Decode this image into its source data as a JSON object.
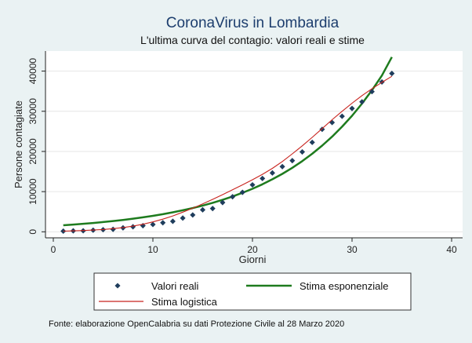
{
  "chart_data": {
    "type": "scatter",
    "title": "CoronaVirus in Lombardia",
    "subtitle": "L'ultima curva del contagio: valori reali e stime",
    "xlabel": "Giorni",
    "ylabel": "Persone contagiate",
    "xlim": [
      0,
      40
    ],
    "ylim": [
      -1500,
      45000
    ],
    "xticks": [
      0,
      10,
      20,
      30,
      40
    ],
    "yticks": [
      0,
      10000,
      20000,
      30000,
      40000
    ],
    "grid": true,
    "legend_position": "bottom",
    "source": "Fonte: elaborazione OpenCalabria su dati Protezione Civile al 28 Marzo 2020",
    "series": [
      {
        "name": "Valori reali",
        "kind": "markers",
        "color": "#1f3d5c",
        "x": [
          1,
          2,
          3,
          4,
          5,
          6,
          7,
          8,
          9,
          10,
          11,
          12,
          13,
          14,
          15,
          16,
          17,
          18,
          19,
          20,
          21,
          22,
          23,
          24,
          25,
          26,
          27,
          28,
          29,
          30,
          31,
          32,
          33,
          34
        ],
        "y": [
          166,
          240,
          258,
          403,
          531,
          615,
          984,
          1254,
          1520,
          1820,
          2251,
          2612,
          3420,
          4189,
          5469,
          5791,
          7280,
          8725,
          9820,
          11685,
          13272,
          14649,
          16220,
          17713,
          19884,
          22264,
          25515,
          27206,
          28761,
          30703,
          32346,
          34889,
          37298,
          39415
        ]
      },
      {
        "name": "Stima esponenziale",
        "kind": "line",
        "color": "#1e7b1e",
        "x": [
          1,
          2,
          3,
          4,
          5,
          6,
          7,
          8,
          9,
          10,
          11,
          12,
          13,
          14,
          15,
          16,
          17,
          18,
          19,
          20,
          21,
          22,
          23,
          24,
          25,
          26,
          27,
          28,
          29,
          30,
          31,
          32,
          33,
          34
        ],
        "y": [
          1630,
          1800,
          1990,
          2200,
          2420,
          2680,
          2950,
          3260,
          3600,
          3980,
          4390,
          4850,
          5350,
          5910,
          6530,
          7210,
          7960,
          8790,
          9710,
          10720,
          11830,
          13070,
          14430,
          15930,
          17590,
          19430,
          21450,
          23690,
          26160,
          28890,
          31900,
          35230,
          38900,
          43500
        ]
      },
      {
        "name": "Stima logistica",
        "kind": "line",
        "color": "#c8231e",
        "x": [
          1,
          2,
          3,
          4,
          5,
          6,
          7,
          8,
          9,
          10,
          11,
          12,
          13,
          14,
          15,
          16,
          17,
          18,
          19,
          20,
          21,
          22,
          23,
          24,
          25,
          26,
          27,
          28,
          29,
          30,
          31,
          32,
          33,
          34
        ],
        "y": [
          170,
          230,
          320,
          430,
          580,
          790,
          1060,
          1420,
          1880,
          2460,
          3150,
          3960,
          4880,
          5880,
          6950,
          8080,
          9250,
          10450,
          11680,
          12950,
          14300,
          15800,
          17500,
          19400,
          21400,
          23500,
          25700,
          27900,
          30000,
          32000,
          33900,
          35600,
          37200,
          38700
        ]
      }
    ]
  }
}
